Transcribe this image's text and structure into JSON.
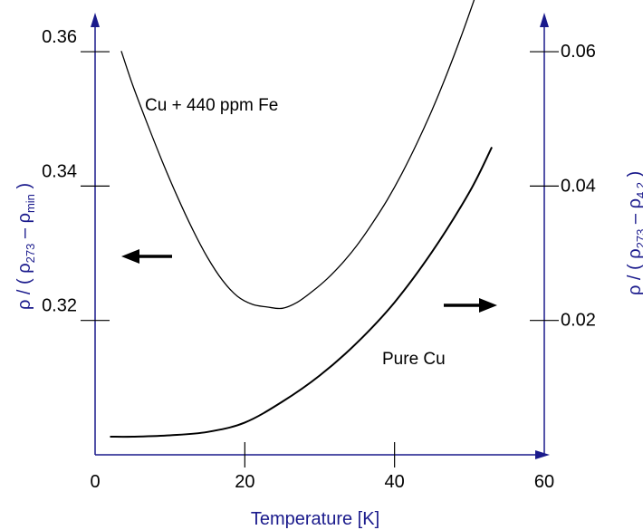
{
  "chart_data": {
    "type": "line",
    "xlabel": "Temperature [K]",
    "x_ticks": [
      "0",
      "20",
      "40",
      "60"
    ],
    "xlim": [
      0,
      60
    ],
    "y_left": {
      "label_prefix": "ρ / ( ρ",
      "label_sub1": "273",
      "label_mid": " – ρ",
      "label_sub2": "min",
      "label_suffix": " )",
      "ticks": [
        "0.32",
        "0.34",
        "0.36"
      ],
      "tick_values": [
        0.32,
        0.34,
        0.36
      ],
      "ylim": [
        0.3,
        0.365
      ]
    },
    "y_right": {
      "label_prefix": "ρ / ( ρ",
      "label_sub1": "273",
      "label_mid": " – ρ",
      "label_sub2": "4.2",
      "label_suffix": " )",
      "ticks": [
        "0.02",
        "0.04",
        "0.06"
      ],
      "tick_values": [
        0.02,
        0.04,
        0.06
      ],
      "ylim": [
        0.0,
        0.065
      ]
    },
    "series": [
      {
        "name": "Cu + 440 ppm Fe",
        "axis": "left",
        "x": [
          3.5,
          5,
          7,
          9,
          11,
          13,
          15,
          17,
          19,
          21,
          23,
          25,
          27,
          29,
          31,
          33,
          35,
          37,
          39,
          41,
          43,
          45,
          47,
          49,
          51,
          53
        ],
        "y": [
          0.3601,
          0.3551,
          0.3492,
          0.3436,
          0.3384,
          0.3336,
          0.3294,
          0.326,
          0.3236,
          0.3224,
          0.322,
          0.3218,
          0.3227,
          0.3243,
          0.3262,
          0.3285,
          0.3312,
          0.3344,
          0.3379,
          0.3419,
          0.3464,
          0.3513,
          0.3567,
          0.3626,
          0.3689,
          0.3755
        ]
      },
      {
        "name": "Pure Cu",
        "axis": "right",
        "x": [
          2,
          5,
          10,
          15,
          20,
          25,
          30,
          35,
          40,
          45,
          50,
          53
        ],
        "y": [
          0.0027,
          0.0027,
          0.0029,
          0.0034,
          0.0048,
          0.0079,
          0.0118,
          0.0167,
          0.0227,
          0.0302,
          0.0391,
          0.0458
        ]
      }
    ],
    "annotations": {
      "curve1_label": "Cu + 440 ppm Fe",
      "curve2_label": "Pure Cu"
    },
    "grid": false
  },
  "colors": {
    "axis": "#1a1a8c",
    "curve": "#000000",
    "tick_text": "#000000"
  }
}
